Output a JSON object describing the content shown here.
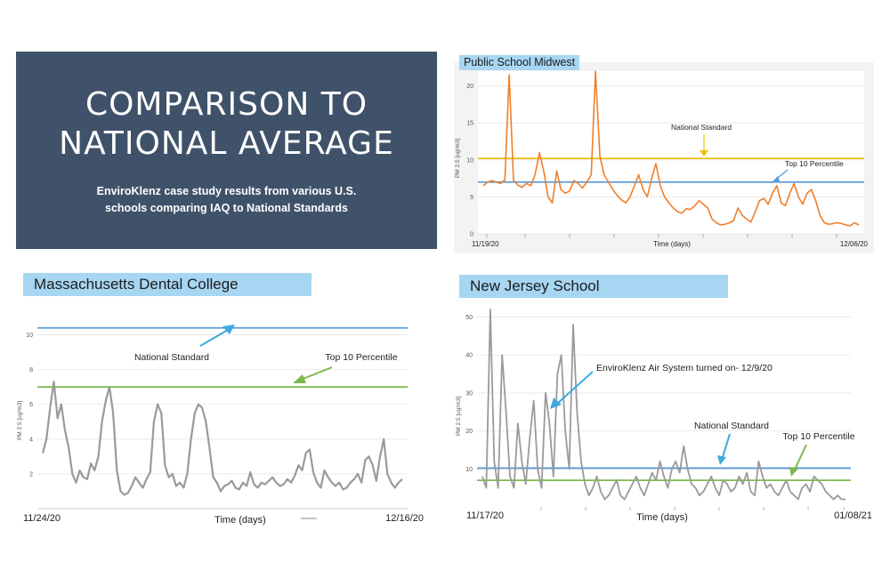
{
  "hero": {
    "title_line1": "COMPARISON TO",
    "title_line2": "NATIONAL AVERAGE",
    "subtitle_line1": "EnviroKlenz case study results from various U.S.",
    "subtitle_line2": "schools comparing IAQ to National Standards"
  },
  "colors": {
    "hero_bg": "#3f5269",
    "title_box": "#a7d6f3",
    "series_orange": "#f07f2a",
    "series_gray": "#9a9a9a",
    "national_standard_blue": "#5b9bd5",
    "national_standard_yellow": "#f0c20e",
    "top10_green": "#7dba4c"
  },
  "chart_data": [
    {
      "id": "midwest",
      "type": "line",
      "title": "Public School Midwest",
      "xlabel": "Time (days)",
      "ylabel": "PM 2.5 [ug/m3]",
      "x_start": "11/19/20",
      "x_end": "12/06/20",
      "ylim": [
        0,
        22
      ],
      "yticks": [
        0,
        5,
        10,
        15,
        20
      ],
      "grid": true,
      "series": [
        {
          "color": "#f07f2a",
          "values": [
            6.5,
            7.0,
            7.2,
            7.0,
            6.8,
            7.3,
            21.5,
            7.2,
            6.6,
            6.3,
            6.8,
            6.5,
            8.0,
            11.0,
            8.5,
            5.0,
            4.2,
            8.5,
            6.0,
            5.5,
            5.8,
            7.2,
            6.8,
            6.2,
            7.0,
            8.0,
            22.0,
            10.5,
            8.0,
            7.0,
            6.0,
            5.2,
            4.6,
            4.2,
            5.0,
            6.5,
            8.0,
            6.0,
            5.0,
            7.5,
            9.5,
            6.5,
            5.0,
            4.2,
            3.5,
            3.0,
            2.8,
            3.4,
            3.3,
            3.8,
            4.5,
            4.0,
            3.5,
            2.0,
            1.5,
            1.2,
            1.3,
            1.5,
            1.8,
            3.5,
            2.5,
            2.0,
            1.6,
            3.0,
            4.5,
            4.8,
            4.0,
            5.5,
            6.5,
            4.2,
            3.8,
            5.5,
            6.8,
            5.0,
            4.0,
            5.5,
            6.0,
            4.5,
            2.5,
            1.5,
            1.3,
            1.4,
            1.5,
            1.4,
            1.2,
            1.1,
            1.5,
            1.2
          ]
        }
      ],
      "reference_lines": [
        {
          "name": "National Standard",
          "value": 10.2,
          "color": "#f0c20e"
        },
        {
          "name": "Top 10 Percentile",
          "value": 7.0,
          "color": "#5b9bd5"
        }
      ],
      "annotations": [
        "National Standard",
        "Top 10 Percentile"
      ]
    },
    {
      "id": "massachusetts",
      "type": "line",
      "title": "Massachusetts Dental College",
      "xlabel": "Time (days)",
      "ylabel": "PM 2.5 [ug/m3]",
      "x_start": "11/24/20",
      "x_end": "12/16/20",
      "ylim": [
        0,
        11
      ],
      "yticks": [
        2,
        4,
        6,
        8,
        10
      ],
      "grid": true,
      "series": [
        {
          "color": "#9a9a9a",
          "values": [
            3.2,
            4.0,
            5.8,
            7.3,
            5.2,
            6.0,
            4.5,
            3.5,
            2.0,
            1.5,
            2.2,
            1.8,
            1.7,
            2.6,
            2.2,
            3.0,
            5.0,
            6.2,
            7.0,
            5.5,
            2.2,
            1.0,
            0.8,
            0.9,
            1.3,
            1.8,
            1.5,
            1.2,
            1.7,
            2.1,
            5.0,
            6.0,
            5.5,
            2.5,
            1.8,
            2.0,
            1.3,
            1.5,
            1.2,
            2.0,
            4.0,
            5.5,
            6.0,
            5.8,
            5.0,
            3.5,
            1.8,
            1.5,
            1.0,
            1.3,
            1.4,
            1.6,
            1.2,
            1.1,
            1.5,
            1.3,
            2.1,
            1.4,
            1.2,
            1.5,
            1.4,
            1.6,
            1.8,
            1.5,
            1.3,
            1.4,
            1.7,
            1.5,
            1.9,
            2.5,
            2.2,
            3.2,
            3.4,
            2.1,
            1.5,
            1.2,
            2.2,
            1.8,
            1.5,
            1.3,
            1.5,
            1.1,
            1.2,
            1.5,
            1.7,
            2.0,
            1.5,
            2.8,
            3.0,
            2.5,
            1.6,
            3.0,
            4.0,
            2.0,
            1.5,
            1.2,
            1.5,
            1.7
          ]
        }
      ],
      "reference_lines": [
        {
          "name": "National Standard",
          "value": 10.4,
          "color": "#5b9bd5"
        },
        {
          "name": "Top 10 Percentile",
          "value": 7.0,
          "color": "#7dba4c"
        }
      ],
      "annotations": [
        "National Standard",
        "Top 10 Percentile"
      ]
    },
    {
      "id": "newjersey",
      "type": "line",
      "title": "New Jersey School",
      "xlabel": "Time (days)",
      "ylabel": "PM 2.5 [ug/m3]",
      "x_start": "11/17/20",
      "x_end": "01/08/21",
      "ylim": [
        0,
        52
      ],
      "yticks": [
        10,
        20,
        30,
        40,
        50
      ],
      "grid": true,
      "series": [
        {
          "color": "#9a9a9a",
          "values": [
            8,
            5,
            52,
            12,
            5,
            40,
            25,
            8,
            5,
            22,
            12,
            6,
            18,
            28,
            10,
            5,
            30,
            22,
            8,
            35,
            40,
            20,
            10,
            48,
            25,
            12,
            6,
            3,
            5,
            8,
            4,
            2,
            3,
            5,
            7,
            3,
            2,
            4,
            6,
            8,
            5,
            3,
            6,
            9,
            7,
            12,
            8,
            5,
            10,
            12,
            9,
            16,
            10,
            6,
            5,
            3,
            4,
            6,
            8,
            5,
            3,
            7,
            6,
            4,
            5,
            8,
            6,
            9,
            4,
            3,
            12,
            8,
            5,
            6,
            4,
            3,
            5,
            7,
            4,
            3,
            2,
            5,
            6,
            4,
            8,
            7,
            6,
            4,
            3,
            2,
            3,
            2,
            2
          ]
        }
      ],
      "reference_lines": [
        {
          "name": "National Standard",
          "value": 10.2,
          "color": "#5b9bd5"
        },
        {
          "name": "Top 10 Percentile",
          "value": 7.0,
          "color": "#7dba4c"
        }
      ],
      "annotations": [
        "EnviroKlenz Air System turned on- 12/9/20",
        "National Standard",
        "Top 10 Percentile"
      ]
    }
  ]
}
